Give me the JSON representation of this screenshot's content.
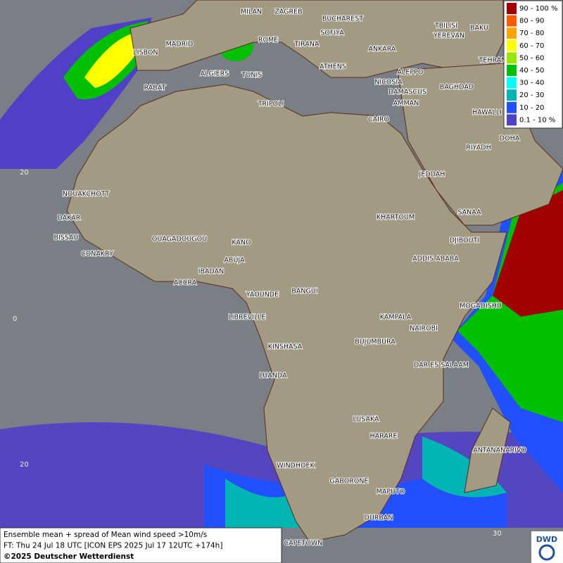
{
  "cities": [
    "MILAN",
    "ZAGREB",
    "BUCHAREST",
    "SOFIYA",
    "TBILISI",
    "BAKU",
    "YEREVAN",
    "ROME",
    "MADRID",
    "TIRANA",
    "ANKARA",
    "LISBON",
    "TEHRAN",
    "ATHENS",
    "ALGIERS",
    "TUNIS",
    "ALEPPO",
    "RABAT",
    "NICOSIA",
    "BAGHDAD",
    "DAMASCUS",
    "TRIPOLI",
    "AMMAN",
    "HAWALLI",
    "CAIRO",
    "DOHA",
    "RIYADH",
    "JEDDAH",
    "NOUAKCHOTT",
    "SANAA",
    "KHARTOUM",
    "DAKAR",
    "DJIBOUTI",
    "BISSAU",
    "OUAGADOUGOU",
    "KANO",
    "CONAKRY",
    "ABUJA",
    "ADDIS ABABA",
    "IBADAN",
    "ACCRA",
    "YAOUNDE",
    "BANGUI",
    "MOGADISHU",
    "LIBREVILLE",
    "KAMPALA",
    "NAIROBI",
    "BUJUMBURA",
    "KINSHASA",
    "DAR ES SALAAM",
    "LUANDA",
    "LUSAKA",
    "HARARE",
    "ANTANANARIVO",
    "WINDHOEK",
    "GABORONE",
    "MAPUTO",
    "DURBAN",
    "CAPETOWN"
  ],
  "grid_labels": [
    "20",
    "0",
    "20",
    "30"
  ],
  "legend": [
    {
      "label": "90 - 100 %",
      "color": "#a00000"
    },
    {
      "label": "80 - 90",
      "color": "#ff5a00"
    },
    {
      "label": "70 - 80",
      "color": "#ffa500"
    },
    {
      "label": "60 - 70",
      "color": "#ffff00"
    },
    {
      "label": "50 - 60",
      "color": "#99e600"
    },
    {
      "label": "40 - 50",
      "color": "#00c000"
    },
    {
      "label": "30 - 40",
      "color": "#00ffff"
    },
    {
      "label": "20 - 30",
      "color": "#00b4b4"
    },
    {
      "label": "10 - 20",
      "color": "#2050ff"
    },
    {
      "label": "0.1 - 10 %",
      "color": "#5040c8"
    }
  ],
  "caption": [
    "Ensemble mean + spread of Mean wind speed >10m/s",
    "FT: Thu 24 Jul 18 UTC [ICON EPS 2025 Jul 17 12UTC +174h]",
    "©2025 Deutscher Wetterdienst"
  ],
  "logo": "DWD"
}
